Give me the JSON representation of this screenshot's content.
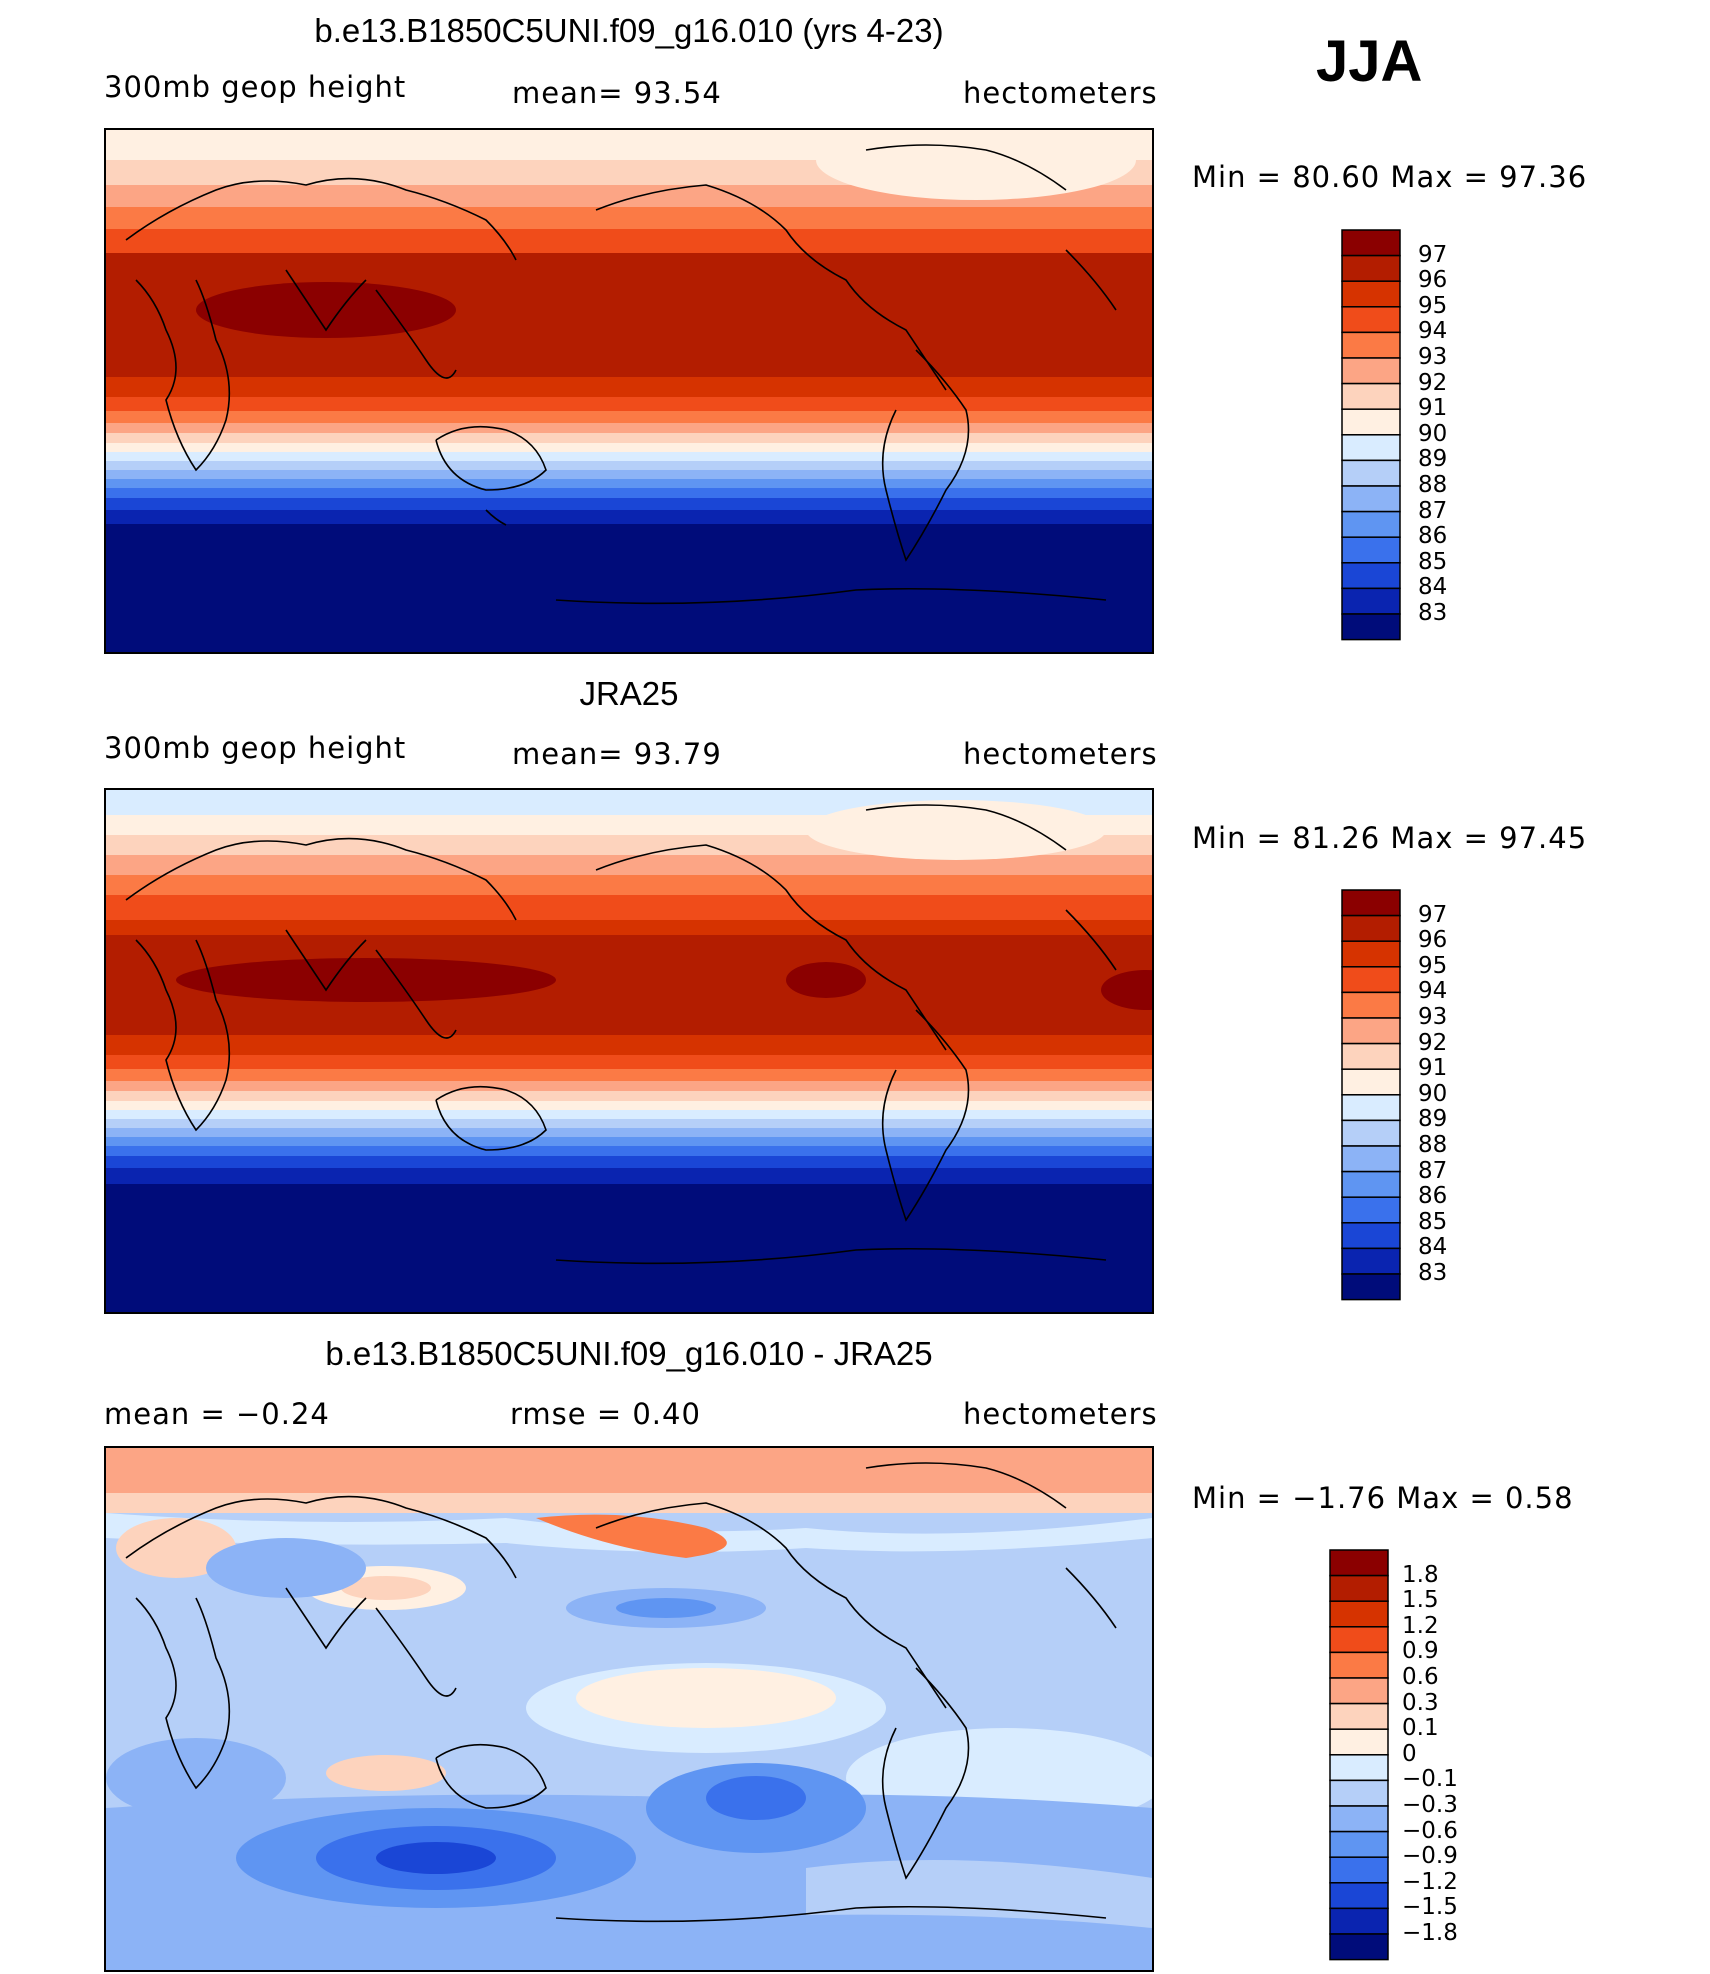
{
  "season": "JJA",
  "panels": [
    {
      "id": "model",
      "title": "b.e13.B1850C5UNI.f09_g16.010 (yrs 4-23)",
      "left_label": "300mb  geop  height",
      "center_label": "mean=   93.54",
      "right_label": "hectometers",
      "minmax": "Min =    80.60  Max =    97.36",
      "colorbar": {
        "labels": [
          "97",
          "96",
          "95",
          "94",
          "93",
          "92",
          "91",
          "90",
          "89",
          "88",
          "87",
          "86",
          "85",
          "84",
          "83"
        ],
        "colors": [
          "#8b0000",
          "#b31d00",
          "#d63300",
          "#f04c1a",
          "#fb7a45",
          "#fca585",
          "#fdd3bd",
          "#fff0e2",
          "#d9ecff",
          "#b5cff8",
          "#8cb3f6",
          "#5f95f2",
          "#3a71ec",
          "#1a46d6",
          "#0a24b0",
          "#000c7a"
        ]
      }
    },
    {
      "id": "obs",
      "title": "JRA25",
      "left_label": "300mb  geop  height",
      "center_label": "mean=   93.79",
      "right_label": "hectometers",
      "minmax": "Min =    81.26  Max =    97.45",
      "colorbar": {
        "labels": [
          "97",
          "96",
          "95",
          "94",
          "93",
          "92",
          "91",
          "90",
          "89",
          "88",
          "87",
          "86",
          "85",
          "84",
          "83"
        ],
        "colors": [
          "#8b0000",
          "#b31d00",
          "#d63300",
          "#f04c1a",
          "#fb7a45",
          "#fca585",
          "#fdd3bd",
          "#fff0e2",
          "#d9ecff",
          "#b5cff8",
          "#8cb3f6",
          "#5f95f2",
          "#3a71ec",
          "#1a46d6",
          "#0a24b0",
          "#000c7a"
        ]
      }
    },
    {
      "id": "diff",
      "title": "b.e13.B1850C5UNI.f09_g16.010 - JRA25",
      "left_label": "mean  =    −0.24",
      "center_label": "rmse  =     0.40",
      "right_label": "hectometers",
      "minmax": "Min =    −1.76  Max =     0.58",
      "colorbar": {
        "labels": [
          "1.8",
          "1.5",
          "1.2",
          "0.9",
          "0.6",
          "0.3",
          "0.1",
          "0",
          "−0.1",
          "−0.3",
          "−0.6",
          "−0.9",
          "−1.2",
          "−1.5",
          "−1.8"
        ],
        "colors": [
          "#8b0000",
          "#b31d00",
          "#d63300",
          "#f04c1a",
          "#fb7a45",
          "#fca585",
          "#fdd3bd",
          "#fff0e2",
          "#d9ecff",
          "#b5cff8",
          "#8cb3f6",
          "#5f95f2",
          "#3a71ec",
          "#1a46d6",
          "#0a24b0",
          "#000c7a"
        ]
      }
    }
  ]
}
